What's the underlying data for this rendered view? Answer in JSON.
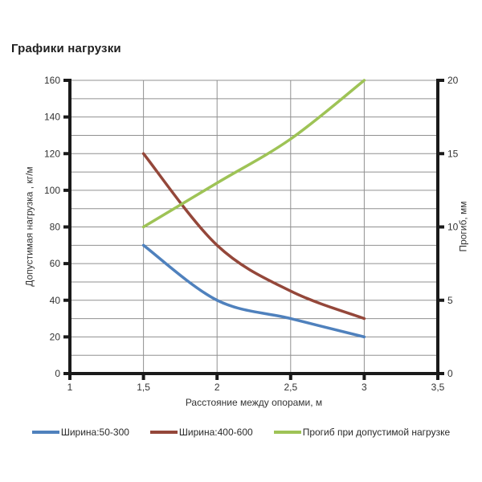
{
  "chart_data": {
    "type": "line",
    "title": "Графики нагрузки",
    "x": [
      1.5,
      2,
      2.5,
      3
    ],
    "x_axis": {
      "label": "Расстояние между опорами, м",
      "min": 1,
      "max": 3.5,
      "ticks": [
        1,
        1.5,
        2,
        2.5,
        3,
        3.5
      ],
      "tick_labels": [
        "1",
        "1,5",
        "2",
        "2,5",
        "3",
        "3,5"
      ]
    },
    "y_axis_left": {
      "label": "Допустимая нагрузка , кг/м",
      "min": 0,
      "max": 160,
      "ticks": [
        0,
        20,
        40,
        60,
        80,
        100,
        120,
        140,
        160
      ],
      "tick_labels": [
        "0",
        "20",
        "40",
        "60",
        "80",
        "100",
        "120",
        "140",
        "160"
      ],
      "grid_step": 10
    },
    "y_axis_right": {
      "label": "Прогиб, мм",
      "min": 0,
      "max": 20,
      "ticks": [
        0,
        5,
        10,
        15,
        20
      ],
      "tick_labels": [
        "0",
        "5",
        "10",
        "15",
        "20"
      ]
    },
    "grid": true,
    "legend_position": "bottom",
    "colors": {
      "grid": "#909090",
      "axis": "#1a1a1a",
      "text": "#333333"
    },
    "series": [
      {
        "name": "Ширина:50-300",
        "axis": "left",
        "color": "#4f81bd",
        "values": [
          70,
          40,
          30,
          20
        ]
      },
      {
        "name": "Ширина:400-600",
        "axis": "left",
        "color": "#94473a",
        "values": [
          120,
          70,
          45,
          30
        ]
      },
      {
        "name": "Прогиб при допустимой нагрузке",
        "axis": "right",
        "color": "#9ec356",
        "values": [
          10,
          13,
          16,
          20
        ]
      }
    ]
  }
}
